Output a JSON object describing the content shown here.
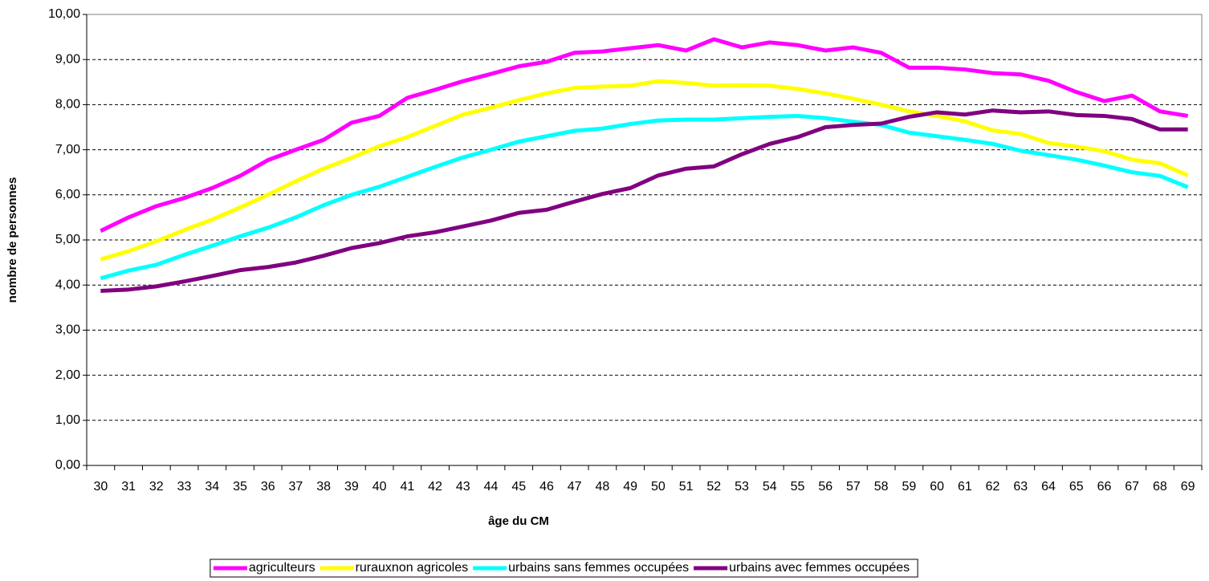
{
  "chart_data": {
    "type": "line",
    "xlabel": "âge du CM",
    "ylabel": "nombre de personnes",
    "categories": [
      "30",
      "31",
      "32",
      "33",
      "34",
      "35",
      "36",
      "37",
      "38",
      "39",
      "40",
      "41",
      "42",
      "43",
      "44",
      "45",
      "46",
      "47",
      "48",
      "49",
      "50",
      "51",
      "52",
      "53",
      "54",
      "55",
      "56",
      "57",
      "58",
      "59",
      "60",
      "61",
      "62",
      "63",
      "64",
      "65",
      "66",
      "67",
      "68",
      "69"
    ],
    "series": [
      {
        "name": "agriculteurs",
        "color": "#FF00FF",
        "values": [
          5.2,
          5.5,
          5.75,
          5.93,
          6.15,
          6.42,
          6.77,
          7.0,
          7.22,
          7.6,
          7.75,
          8.15,
          8.33,
          8.52,
          8.68,
          8.85,
          8.95,
          9.15,
          9.18,
          9.25,
          9.32,
          9.2,
          9.45,
          9.27,
          9.38,
          9.32,
          9.2,
          9.27,
          9.15,
          8.82,
          8.82,
          8.78,
          8.7,
          8.67,
          8.53,
          8.28,
          8.08,
          8.2,
          7.85,
          7.75
        ]
      },
      {
        "name": "rurauxnon agricoles",
        "color": "#FFFF00",
        "values": [
          4.57,
          4.75,
          4.97,
          5.22,
          5.45,
          5.72,
          6.0,
          6.3,
          6.58,
          6.82,
          7.08,
          7.28,
          7.53,
          7.78,
          7.93,
          8.1,
          8.25,
          8.37,
          8.4,
          8.42,
          8.52,
          8.48,
          8.42,
          8.43,
          8.42,
          8.35,
          8.25,
          8.13,
          8.0,
          7.85,
          7.75,
          7.63,
          7.43,
          7.35,
          7.15,
          7.07,
          6.97,
          6.78,
          6.7,
          6.43
        ]
      },
      {
        "name": "urbains sans femmes occupées",
        "color": "#00FFFF",
        "values": [
          4.15,
          4.32,
          4.45,
          4.67,
          4.87,
          5.08,
          5.27,
          5.5,
          5.77,
          6.0,
          6.18,
          6.4,
          6.62,
          6.83,
          7.0,
          7.18,
          7.3,
          7.42,
          7.47,
          7.57,
          7.65,
          7.67,
          7.67,
          7.7,
          7.73,
          7.75,
          7.7,
          7.62,
          7.55,
          7.38,
          7.3,
          7.22,
          7.13,
          6.98,
          6.88,
          6.78,
          6.65,
          6.5,
          6.42,
          6.17
        ]
      },
      {
        "name": "urbains avec femmes occupées",
        "color": "#800080",
        "values": [
          3.87,
          3.9,
          3.97,
          4.08,
          4.2,
          4.33,
          4.4,
          4.5,
          4.65,
          4.82,
          4.93,
          5.08,
          5.17,
          5.3,
          5.43,
          5.6,
          5.67,
          5.85,
          6.02,
          6.15,
          6.43,
          6.58,
          6.63,
          6.9,
          7.13,
          7.28,
          7.5,
          7.55,
          7.58,
          7.73,
          7.83,
          7.78,
          7.87,
          7.83,
          7.85,
          7.77,
          7.75,
          7.68,
          7.45,
          7.45
        ]
      }
    ],
    "ylim": [
      0,
      10
    ],
    "yticks": [
      {
        "value": 0,
        "label": "0,00"
      },
      {
        "value": 1,
        "label": "1,00"
      },
      {
        "value": 2,
        "label": "2,00"
      },
      {
        "value": 3,
        "label": "3,00"
      },
      {
        "value": 4,
        "label": "4,00"
      },
      {
        "value": 5,
        "label": "5,00"
      },
      {
        "value": 6,
        "label": "6,00"
      },
      {
        "value": 7,
        "label": "7,00"
      },
      {
        "value": 8,
        "label": "8,00"
      },
      {
        "value": 9,
        "label": "9,00"
      },
      {
        "value": 10,
        "label": "10,00"
      }
    ],
    "grid": true,
    "legend": "bottom"
  }
}
